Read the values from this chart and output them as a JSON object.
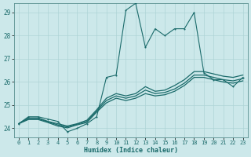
{
  "xlabel": "Humidex (Indice chaleur)",
  "x_values": [
    0,
    1,
    2,
    3,
    4,
    5,
    6,
    7,
    8,
    9,
    10,
    11,
    12,
    13,
    14,
    15,
    16,
    17,
    18,
    19,
    20,
    21,
    22,
    23
  ],
  "line1_y": [
    24.2,
    24.5,
    24.5,
    24.4,
    24.3,
    23.85,
    24.0,
    24.2,
    24.5,
    26.2,
    26.3,
    29.1,
    29.4,
    27.5,
    28.3,
    28.0,
    28.3,
    28.3,
    29.0,
    26.4,
    26.1,
    26.1,
    25.8,
    26.2
  ],
  "line2_y": [
    24.2,
    24.45,
    24.45,
    24.3,
    24.2,
    24.1,
    24.2,
    24.35,
    24.8,
    25.3,
    25.5,
    25.4,
    25.5,
    25.8,
    25.6,
    25.65,
    25.85,
    26.1,
    26.45,
    26.45,
    26.35,
    26.25,
    26.2,
    26.3
  ],
  "line3_y": [
    24.2,
    24.42,
    24.42,
    24.28,
    24.15,
    24.06,
    24.18,
    24.3,
    24.75,
    25.2,
    25.4,
    25.3,
    25.4,
    25.65,
    25.5,
    25.55,
    25.7,
    25.95,
    26.3,
    26.3,
    26.2,
    26.1,
    26.05,
    26.15
  ],
  "line4_y": [
    24.2,
    24.38,
    24.38,
    24.25,
    24.1,
    24.02,
    24.15,
    24.25,
    24.7,
    25.1,
    25.3,
    25.2,
    25.3,
    25.5,
    25.4,
    25.45,
    25.6,
    25.85,
    26.2,
    26.2,
    26.1,
    26.0,
    25.95,
    26.05
  ],
  "bg_color": "#cce8ea",
  "line_color": "#1b6b6b",
  "grid_color": "#aed4d6",
  "ylim": [
    23.6,
    29.4
  ],
  "xlim": [
    -0.5,
    23.5
  ],
  "yticks": [
    24,
    25,
    26,
    27,
    28,
    29
  ]
}
